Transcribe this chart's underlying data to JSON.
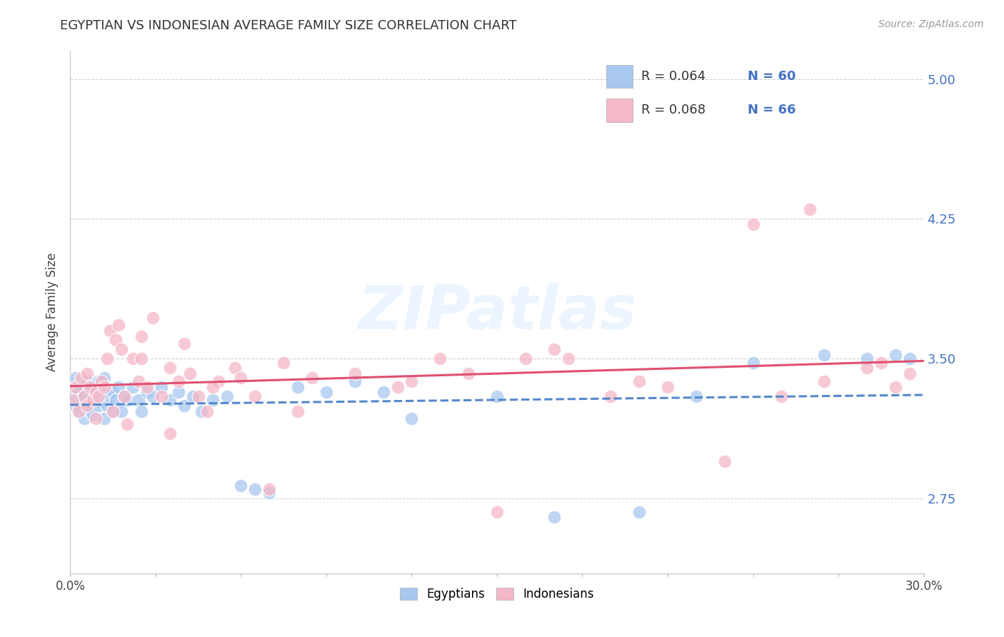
{
  "title": "EGYPTIAN VS INDONESIAN AVERAGE FAMILY SIZE CORRELATION CHART",
  "source": "Source: ZipAtlas.com",
  "ylabel": "Average Family Size",
  "xlim": [
    0.0,
    0.3
  ],
  "ylim": [
    2.35,
    5.15
  ],
  "yticks": [
    2.75,
    3.5,
    4.25,
    5.0
  ],
  "yticklabels": [
    "2.75",
    "3.50",
    "4.25",
    "5.00"
  ],
  "xticks": [
    0.0,
    0.03,
    0.06,
    0.09,
    0.12,
    0.15,
    0.18,
    0.21,
    0.24,
    0.27,
    0.3
  ],
  "xticklabels_show": [
    "0.0%",
    "30.0%"
  ],
  "title_fontsize": 13,
  "source_fontsize": 10,
  "legend_R_egyptian": "R = 0.064",
  "legend_N_egyptian": "N = 60",
  "legend_R_indonesian": "R = 0.068",
  "legend_N_indonesian": "N = 66",
  "egyptian_color": "#a8c8f0",
  "indonesian_color": "#f5b8c8",
  "egyptian_line_color": "#5588cc",
  "indonesian_line_color": "#e05070",
  "watermark_text": "ZIPatlas",
  "egyptian_x": [
    0.001,
    0.002,
    0.002,
    0.003,
    0.003,
    0.004,
    0.004,
    0.005,
    0.005,
    0.006,
    0.006,
    0.007,
    0.007,
    0.008,
    0.008,
    0.009,
    0.01,
    0.01,
    0.011,
    0.012,
    0.012,
    0.013,
    0.014,
    0.015,
    0.015,
    0.016,
    0.017,
    0.018,
    0.019,
    0.02,
    0.022,
    0.024,
    0.025,
    0.027,
    0.029,
    0.032,
    0.035,
    0.038,
    0.04,
    0.043,
    0.046,
    0.05,
    0.055,
    0.06,
    0.065,
    0.07,
    0.08,
    0.09,
    0.1,
    0.11,
    0.12,
    0.15,
    0.17,
    0.2,
    0.22,
    0.24,
    0.265,
    0.28,
    0.29,
    0.295
  ],
  "egyptian_y": [
    3.3,
    3.25,
    3.4,
    3.32,
    3.22,
    3.28,
    3.35,
    3.18,
    3.3,
    3.25,
    3.38,
    3.3,
    3.22,
    3.35,
    3.2,
    3.28,
    3.38,
    3.25,
    3.32,
    3.18,
    3.4,
    3.25,
    3.3,
    3.22,
    3.32,
    3.28,
    3.35,
    3.22,
    3.3,
    3.28,
    3.35,
    3.28,
    3.22,
    3.32,
    3.3,
    3.35,
    3.28,
    3.32,
    3.25,
    3.3,
    3.22,
    3.28,
    3.3,
    2.82,
    2.8,
    2.78,
    3.35,
    3.32,
    3.38,
    3.32,
    3.18,
    3.3,
    2.65,
    2.68,
    3.3,
    3.48,
    3.52,
    3.5,
    3.52,
    3.5
  ],
  "indonesian_x": [
    0.001,
    0.002,
    0.003,
    0.004,
    0.005,
    0.006,
    0.006,
    0.007,
    0.008,
    0.009,
    0.009,
    0.01,
    0.011,
    0.012,
    0.013,
    0.014,
    0.015,
    0.016,
    0.017,
    0.018,
    0.019,
    0.02,
    0.022,
    0.024,
    0.025,
    0.027,
    0.029,
    0.032,
    0.035,
    0.038,
    0.04,
    0.042,
    0.045,
    0.048,
    0.052,
    0.058,
    0.065,
    0.075,
    0.085,
    0.1,
    0.115,
    0.13,
    0.15,
    0.17,
    0.19,
    0.21,
    0.23,
    0.25,
    0.265,
    0.28,
    0.29,
    0.295,
    0.16,
    0.06,
    0.07,
    0.035,
    0.025,
    0.05,
    0.08,
    0.12,
    0.14,
    0.2,
    0.24,
    0.175,
    0.26,
    0.285
  ],
  "indonesian_y": [
    3.28,
    3.35,
    3.22,
    3.4,
    3.3,
    3.25,
    3.42,
    3.35,
    3.28,
    3.32,
    3.18,
    3.3,
    3.38,
    3.35,
    3.5,
    3.65,
    3.22,
    3.6,
    3.68,
    3.55,
    3.3,
    3.15,
    3.5,
    3.38,
    3.62,
    3.35,
    3.72,
    3.3,
    3.45,
    3.38,
    3.58,
    3.42,
    3.3,
    3.22,
    3.38,
    3.45,
    3.3,
    3.48,
    3.4,
    3.42,
    3.35,
    3.5,
    2.68,
    3.55,
    3.3,
    3.35,
    2.95,
    3.3,
    3.38,
    3.45,
    3.35,
    3.42,
    3.5,
    3.4,
    2.8,
    3.1,
    3.5,
    3.35,
    3.22,
    3.38,
    3.42,
    3.38,
    4.22,
    3.5,
    4.3,
    3.48
  ]
}
